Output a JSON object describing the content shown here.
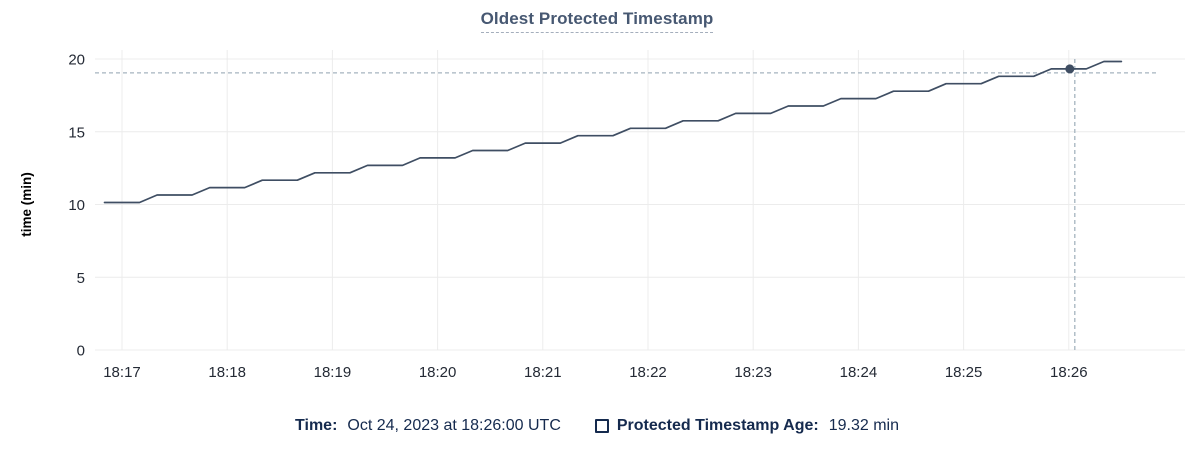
{
  "header": {
    "title": "Oldest Protected Timestamp"
  },
  "legend": {
    "time_label": "Time:",
    "time_value": "Oct 24, 2023 at 18:26:00 UTC",
    "series_label": "Protected Timestamp Age:",
    "series_value": "19.32 min",
    "checkbox_icon": "checkbox-unchecked"
  },
  "colors": {
    "title": "#475872",
    "axis_text": "#242a35",
    "grid": "#ececec",
    "line": "#3f4e63",
    "crosshair": "#a5b4bf",
    "legend_text": "#152a4e"
  },
  "chart_data": {
    "type": "line",
    "title": "Oldest Protected Timestamp",
    "xlabel": "",
    "ylabel": "time (min)",
    "ylim": [
      0,
      20
    ],
    "y_ticks": [
      0,
      5,
      10,
      15,
      20
    ],
    "x_ticks": [
      "18:17",
      "18:18",
      "18:19",
      "18:20",
      "18:21",
      "18:22",
      "18:23",
      "18:24",
      "18:25",
      "18:26"
    ],
    "grid": true,
    "legend_position": "bottom",
    "series": [
      {
        "name": "Protected Timestamp Age",
        "unit": "min",
        "x": [
          "18:16:50",
          "18:17:00",
          "18:17:10",
          "18:17:20",
          "18:17:30",
          "18:17:40",
          "18:17:50",
          "18:18:00",
          "18:18:10",
          "18:18:20",
          "18:18:30",
          "18:18:40",
          "18:18:50",
          "18:19:00",
          "18:19:10",
          "18:19:20",
          "18:19:30",
          "18:19:40",
          "18:19:50",
          "18:20:00",
          "18:20:10",
          "18:20:20",
          "18:20:30",
          "18:20:40",
          "18:20:50",
          "18:21:00",
          "18:21:10",
          "18:21:20",
          "18:21:30",
          "18:21:40",
          "18:21:50",
          "18:22:00",
          "18:22:10",
          "18:22:20",
          "18:22:30",
          "18:22:40",
          "18:22:50",
          "18:23:00",
          "18:23:10",
          "18:23:20",
          "18:23:30",
          "18:23:40",
          "18:23:50",
          "18:24:00",
          "18:24:10",
          "18:24:20",
          "18:24:30",
          "18:24:40",
          "18:24:50",
          "18:25:00",
          "18:25:10",
          "18:25:20",
          "18:25:30",
          "18:25:40",
          "18:25:50",
          "18:26:00",
          "18:26:10",
          "18:26:20",
          "18:26:30"
        ],
        "values": [
          10.14,
          10.14,
          10.14,
          10.65,
          10.65,
          10.65,
          11.16,
          11.16,
          11.16,
          11.67,
          11.67,
          11.67,
          12.18,
          12.18,
          12.18,
          12.69,
          12.69,
          12.69,
          13.2,
          13.2,
          13.2,
          13.71,
          13.71,
          13.71,
          14.22,
          14.22,
          14.22,
          14.73,
          14.73,
          14.73,
          15.24,
          15.24,
          15.24,
          15.75,
          15.75,
          15.75,
          16.26,
          16.26,
          16.26,
          16.77,
          16.77,
          16.77,
          17.28,
          17.28,
          17.28,
          17.79,
          17.79,
          17.79,
          18.3,
          18.3,
          18.3,
          18.81,
          18.81,
          18.81,
          19.32,
          19.32,
          19.32,
          19.83,
          19.83
        ]
      }
    ],
    "highlighted_point": {
      "x": "18:26:00",
      "value": 19.32
    }
  }
}
